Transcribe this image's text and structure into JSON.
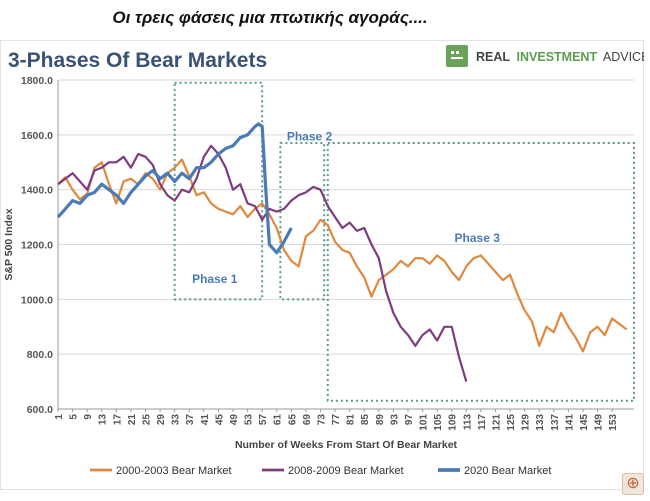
{
  "caption": "Οι τρεις φάσεις μια πτωτικής αγοράς....",
  "brand": {
    "bold": "REAL",
    "highlight": "INVESTMENT",
    "rest": "ADVICE"
  },
  "zoom_icon": "zoom-in-icon",
  "chart_data": {
    "type": "line",
    "title": "3-Phases Of Bear Markets",
    "xlabel": "Number of Weeks From Start Of Bear Market",
    "ylabel": "S&P 500 Index",
    "ylim": [
      600,
      1800
    ],
    "yticks": [
      600,
      800,
      1000,
      1200,
      1400,
      1600,
      1800
    ],
    "ytick_labels": [
      "600.0",
      "800.0",
      "1000.0",
      "1200.0",
      "1400.0",
      "1600.0",
      "1800.0"
    ],
    "xlim": [
      1,
      159
    ],
    "xticks": [
      1,
      5,
      9,
      13,
      17,
      21,
      25,
      29,
      33,
      37,
      41,
      45,
      49,
      53,
      57,
      61,
      65,
      69,
      73,
      77,
      81,
      85,
      89,
      93,
      97,
      101,
      105,
      109,
      113,
      117,
      121,
      125,
      129,
      133,
      137,
      141,
      145,
      149,
      153
    ],
    "series": [
      {
        "name": "2000-2003 Bear Market",
        "color": "#e0893e",
        "width": 2.2,
        "x": [
          1,
          3,
          5,
          7,
          9,
          11,
          13,
          15,
          17,
          19,
          21,
          23,
          25,
          27,
          29,
          31,
          33,
          35,
          37,
          39,
          41,
          43,
          45,
          47,
          49,
          51,
          53,
          55,
          57,
          59,
          61,
          63,
          65,
          67,
          69,
          71,
          73,
          75,
          77,
          79,
          81,
          83,
          85,
          87,
          89,
          91,
          93,
          95,
          97,
          99,
          101,
          103,
          105,
          107,
          109,
          111,
          113,
          115,
          117,
          119,
          121,
          123,
          125,
          127,
          129,
          131,
          133,
          135,
          137,
          139,
          141,
          143,
          145,
          147,
          149,
          151,
          153,
          155,
          157
        ],
        "y": [
          1420,
          1445,
          1400,
          1365,
          1385,
          1480,
          1500,
          1420,
          1350,
          1430,
          1440,
          1420,
          1460,
          1440,
          1400,
          1460,
          1480,
          1510,
          1450,
          1380,
          1390,
          1350,
          1330,
          1320,
          1310,
          1340,
          1300,
          1330,
          1350,
          1310,
          1260,
          1180,
          1140,
          1120,
          1230,
          1250,
          1290,
          1270,
          1210,
          1180,
          1170,
          1120,
          1080,
          1010,
          1070,
          1090,
          1110,
          1140,
          1120,
          1150,
          1150,
          1130,
          1160,
          1140,
          1100,
          1070,
          1120,
          1150,
          1160,
          1130,
          1100,
          1070,
          1090,
          1020,
          960,
          920,
          830,
          900,
          880,
          950,
          900,
          860,
          810,
          880,
          900,
          870,
          930,
          910,
          890
        ]
      },
      {
        "name": "2008-2009 Bear Market",
        "color": "#7d3c7e",
        "width": 2.2,
        "x": [
          1,
          3,
          5,
          7,
          9,
          11,
          13,
          15,
          17,
          19,
          21,
          23,
          25,
          27,
          29,
          31,
          33,
          35,
          37,
          39,
          41,
          43,
          45,
          47,
          49,
          51,
          53,
          55,
          57,
          59,
          61,
          63,
          65,
          67,
          69,
          71,
          73,
          75,
          77,
          79,
          81,
          83,
          85,
          87,
          89,
          91,
          93,
          95,
          97,
          99,
          101,
          103,
          105,
          107,
          109,
          111,
          113
        ],
        "y": [
          1420,
          1440,
          1460,
          1430,
          1400,
          1470,
          1480,
          1500,
          1500,
          1520,
          1480,
          1530,
          1520,
          1490,
          1420,
          1380,
          1360,
          1400,
          1390,
          1440,
          1520,
          1560,
          1530,
          1480,
          1400,
          1420,
          1350,
          1340,
          1290,
          1330,
          1320,
          1330,
          1360,
          1380,
          1390,
          1410,
          1400,
          1340,
          1300,
          1260,
          1280,
          1250,
          1260,
          1200,
          1150,
          1030,
          950,
          900,
          870,
          830,
          870,
          890,
          850,
          900,
          900,
          790,
          700
        ]
      },
      {
        "name": "2020 Bear Market",
        "color": "#4a7bb7",
        "width": 3.2,
        "x": [
          1,
          3,
          5,
          7,
          9,
          11,
          13,
          15,
          17,
          19,
          21,
          23,
          25,
          27,
          29,
          31,
          33,
          35,
          37,
          39,
          41,
          43,
          45,
          47,
          49,
          51,
          53,
          55,
          56,
          57,
          58,
          59,
          61,
          63,
          65
        ],
        "y": [
          1300,
          1330,
          1360,
          1350,
          1380,
          1390,
          1420,
          1400,
          1380,
          1350,
          1390,
          1420,
          1450,
          1470,
          1440,
          1460,
          1430,
          1460,
          1440,
          1480,
          1480,
          1500,
          1530,
          1550,
          1560,
          1590,
          1600,
          1630,
          1640,
          1630,
          1400,
          1200,
          1170,
          1210,
          1260
        ]
      }
    ],
    "annotations": [
      {
        "label": "Phase 1",
        "x": 44,
        "y": 1060
      },
      {
        "label": "Phase 2",
        "x": 70,
        "y": 1580
      },
      {
        "label": "Phase 3",
        "x": 116,
        "y": 1210
      }
    ],
    "phase_boxes": [
      {
        "x0": 33,
        "x1": 57,
        "y0": 1000,
        "y1": 1790
      },
      {
        "x0": 62,
        "x1": 74,
        "y0": 1000,
        "y1": 1570
      },
      {
        "x0": 75,
        "x1": 159,
        "y0": 630,
        "y1": 1570
      }
    ],
    "legend_position": "bottom",
    "grid": true
  }
}
